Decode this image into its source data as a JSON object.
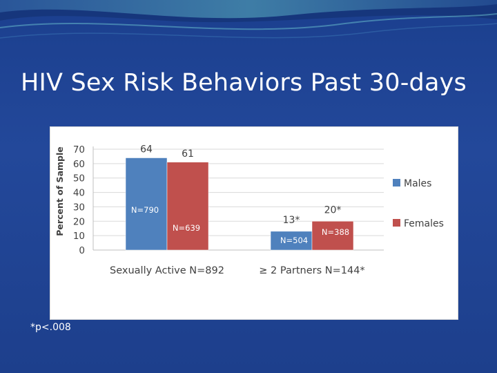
{
  "slide": {
    "title": "HIV Sex Risk Behaviors Past 30-days",
    "footnote": "*p<.008"
  },
  "colors": {
    "males": "#4f81bd",
    "females": "#c0504d",
    "background": "#1f438f"
  },
  "chart_data": {
    "type": "bar",
    "title": "",
    "xlabel": "",
    "ylabel": "Percent of Sample",
    "ylim": [
      0,
      70
    ],
    "yticks": [
      0,
      10,
      20,
      30,
      40,
      50,
      60,
      70
    ],
    "categories": [
      "Sexually Active N=892",
      "≥ 2 Partners N=144*"
    ],
    "grid": true,
    "legend_position": "right",
    "series": [
      {
        "name": "Males",
        "color": "#4f81bd",
        "values": [
          64,
          13
        ],
        "value_labels": [
          "64",
          "13*"
        ],
        "n_labels": [
          "N=790",
          "N=504"
        ]
      },
      {
        "name": "Females",
        "color": "#c0504d",
        "values": [
          61,
          20
        ],
        "value_labels": [
          "61",
          "20*"
        ],
        "n_labels": [
          "N=639",
          "N=388"
        ]
      }
    ]
  }
}
